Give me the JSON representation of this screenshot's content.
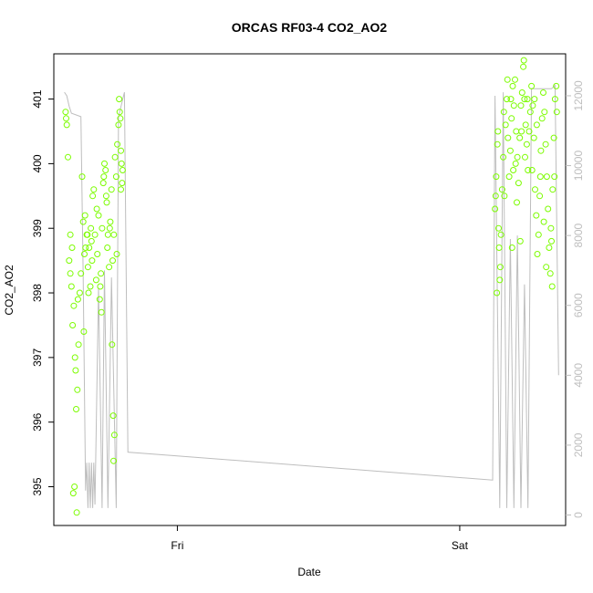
{
  "chart_data": {
    "type": "scatter",
    "title": "ORCAS RF03-4 CO2_AO2",
    "xlabel": "Date",
    "ylabel": "CO2_AO2",
    "x_ticks": [
      {
        "label": "Fri",
        "hours": 24
      },
      {
        "label": "Sat",
        "hours": 48
      }
    ],
    "xlim_hours": [
      13.5,
      57
    ],
    "ylim": [
      394.4,
      401.7
    ],
    "y_ticks": [
      395,
      396,
      397,
      398,
      399,
      400,
      401
    ],
    "y2lim": [
      -300,
      13200
    ],
    "y2_ticks": [
      0,
      2000,
      4000,
      6000,
      8000,
      10000,
      12000
    ],
    "colors": {
      "points": "#7cfc00",
      "line": "#bebebe",
      "axis": "#000000",
      "axis2": "#bebebe"
    },
    "points": [
      [
        14.5,
        400.8
      ],
      [
        14.55,
        400.7
      ],
      [
        14.6,
        400.6
      ],
      [
        14.7,
        400.1
      ],
      [
        14.8,
        398.5
      ],
      [
        14.9,
        398.3
      ],
      [
        15.0,
        398.1
      ],
      [
        15.1,
        397.5
      ],
      [
        15.2,
        397.8
      ],
      [
        15.3,
        397.0
      ],
      [
        15.35,
        396.8
      ],
      [
        15.4,
        396.2
      ],
      [
        15.5,
        396.5
      ],
      [
        15.6,
        397.2
      ],
      [
        15.7,
        398.0
      ],
      [
        15.8,
        398.3
      ],
      [
        15.9,
        399.8
      ],
      [
        16.0,
        399.1
      ],
      [
        16.1,
        398.6
      ],
      [
        16.2,
        398.7
      ],
      [
        16.3,
        398.9
      ],
      [
        16.4,
        398.4
      ],
      [
        16.5,
        398.7
      ],
      [
        16.6,
        398.1
      ],
      [
        16.7,
        398.8
      ],
      [
        16.8,
        399.5
      ],
      [
        16.9,
        399.6
      ],
      [
        17.0,
        398.9
      ],
      [
        17.1,
        398.2
      ],
      [
        17.2,
        398.6
      ],
      [
        17.3,
        399.2
      ],
      [
        17.4,
        397.9
      ],
      [
        17.5,
        398.3
      ],
      [
        17.6,
        399.0
      ],
      [
        17.7,
        399.7
      ],
      [
        17.8,
        400.0
      ],
      [
        17.9,
        399.9
      ],
      [
        18.0,
        399.4
      ],
      [
        18.1,
        398.9
      ],
      [
        18.2,
        398.4
      ],
      [
        18.3,
        399.1
      ],
      [
        18.4,
        399.6
      ],
      [
        18.5,
        398.5
      ],
      [
        18.6,
        398.9
      ],
      [
        18.7,
        400.1
      ],
      [
        18.8,
        399.8
      ],
      [
        18.9,
        400.3
      ],
      [
        19.0,
        400.6
      ],
      [
        19.1,
        400.8
      ],
      [
        19.2,
        400.2
      ],
      [
        19.3,
        399.7
      ],
      [
        19.35,
        399.9
      ],
      [
        15.15,
        394.9
      ],
      [
        15.25,
        395.0
      ],
      [
        15.45,
        394.6
      ],
      [
        16.05,
        397.4
      ],
      [
        16.45,
        398.0
      ],
      [
        17.55,
        397.7
      ],
      [
        18.45,
        397.2
      ],
      [
        18.55,
        396.1
      ],
      [
        18.65,
        395.8
      ],
      [
        18.58,
        395.4
      ],
      [
        19.05,
        401.0
      ],
      [
        19.15,
        400.7
      ],
      [
        14.9,
        398.9
      ],
      [
        15.05,
        398.7
      ],
      [
        16.15,
        399.2
      ],
      [
        16.65,
        399.0
      ],
      [
        17.15,
        399.3
      ],
      [
        17.75,
        399.8
      ],
      [
        18.85,
        398.6
      ],
      [
        19.25,
        400.0
      ],
      [
        17.95,
        399.5
      ],
      [
        18.05,
        398.7
      ],
      [
        15.55,
        397.9
      ],
      [
        16.75,
        398.5
      ],
      [
        17.45,
        398.1
      ],
      [
        16.35,
        398.9
      ],
      [
        18.25,
        399.0
      ],
      [
        19.2,
        399.6
      ],
      [
        51.0,
        399.3
      ],
      [
        51.1,
        399.8
      ],
      [
        51.2,
        400.3
      ],
      [
        51.3,
        399.0
      ],
      [
        51.35,
        398.7
      ],
      [
        51.4,
        398.2
      ],
      [
        51.5,
        398.9
      ],
      [
        51.6,
        399.6
      ],
      [
        51.7,
        400.1
      ],
      [
        51.8,
        399.5
      ],
      [
        51.9,
        400.6
      ],
      [
        52.0,
        401.0
      ],
      [
        52.1,
        400.4
      ],
      [
        52.2,
        399.8
      ],
      [
        52.3,
        400.2
      ],
      [
        52.4,
        400.7
      ],
      [
        52.5,
        401.2
      ],
      [
        52.6,
        400.9
      ],
      [
        52.7,
        401.3
      ],
      [
        52.8,
        400.5
      ],
      [
        52.9,
        400.1
      ],
      [
        53.0,
        399.7
      ],
      [
        53.1,
        400.4
      ],
      [
        53.2,
        400.9
      ],
      [
        53.3,
        401.1
      ],
      [
        53.4,
        401.5
      ],
      [
        53.5,
        401.0
      ],
      [
        53.6,
        400.6
      ],
      [
        53.7,
        400.3
      ],
      [
        53.8,
        399.9
      ],
      [
        53.9,
        400.5
      ],
      [
        54.0,
        400.8
      ],
      [
        54.1,
        401.2
      ],
      [
        54.2,
        400.9
      ],
      [
        54.3,
        400.4
      ],
      [
        54.4,
        399.6
      ],
      [
        54.5,
        399.2
      ],
      [
        54.6,
        398.6
      ],
      [
        54.7,
        398.9
      ],
      [
        54.8,
        399.5
      ],
      [
        54.9,
        400.2
      ],
      [
        55.0,
        400.7
      ],
      [
        55.1,
        401.1
      ],
      [
        55.2,
        400.8
      ],
      [
        55.3,
        400.3
      ],
      [
        55.4,
        399.8
      ],
      [
        55.5,
        399.3
      ],
      [
        55.6,
        398.7
      ],
      [
        55.7,
        398.3
      ],
      [
        55.8,
        398.8
      ],
      [
        55.9,
        399.6
      ],
      [
        56.0,
        400.4
      ],
      [
        56.1,
        401.0
      ],
      [
        56.2,
        401.2
      ],
      [
        56.25,
        400.8
      ],
      [
        53.45,
        401.6
      ],
      [
        52.05,
        401.3
      ],
      [
        51.15,
        398.0
      ],
      [
        52.55,
        399.9
      ],
      [
        53.15,
        398.8
      ],
      [
        54.15,
        399.9
      ],
      [
        55.35,
        398.4
      ],
      [
        56.05,
        399.8
      ],
      [
        51.45,
        398.4
      ],
      [
        52.75,
        400.0
      ],
      [
        53.75,
        401.0
      ],
      [
        54.85,
        399.8
      ],
      [
        55.75,
        399.0
      ],
      [
        51.25,
        400.5
      ],
      [
        52.35,
        401.0
      ],
      [
        53.55,
        400.1
      ],
      [
        54.55,
        400.6
      ],
      [
        55.15,
        399.1
      ],
      [
        55.85,
        398.1
      ],
      [
        51.05,
        399.5
      ],
      [
        52.85,
        399.4
      ],
      [
        54.35,
        401.0
      ],
      [
        53.25,
        400.5
      ],
      [
        51.75,
        400.8
      ],
      [
        52.45,
        398.7
      ]
    ],
    "line": [
      [
        14.4,
        12100
      ],
      [
        14.6,
        12000
      ],
      [
        14.8,
        11700
      ],
      [
        15.0,
        11500
      ],
      [
        15.8,
        11400
      ],
      [
        16.0,
        6800
      ],
      [
        16.2,
        700
      ],
      [
        16.3,
        1500
      ],
      [
        16.4,
        200
      ],
      [
        16.5,
        1500
      ],
      [
        16.6,
        200
      ],
      [
        16.7,
        1500
      ],
      [
        16.8,
        200
      ],
      [
        16.9,
        1500
      ],
      [
        17.0,
        300
      ],
      [
        17.3,
        6500
      ],
      [
        17.6,
        200
      ],
      [
        17.8,
        7000
      ],
      [
        18.1,
        200
      ],
      [
        18.4,
        6800
      ],
      [
        18.8,
        200
      ],
      [
        19.0,
        11400
      ],
      [
        19.5,
        12100
      ],
      [
        19.8,
        1800
      ],
      [
        50.8,
        1000
      ],
      [
        51.0,
        12000
      ],
      [
        51.4,
        200
      ],
      [
        51.7,
        12100
      ],
      [
        52.0,
        200
      ],
      [
        52.3,
        7900
      ],
      [
        52.6,
        200
      ],
      [
        52.9,
        8000
      ],
      [
        53.2,
        200
      ],
      [
        53.5,
        6600
      ],
      [
        53.8,
        200
      ],
      [
        54.1,
        12200
      ],
      [
        55.8,
        12200
      ],
      [
        56.1,
        12300
      ],
      [
        56.4,
        4000
      ]
    ]
  }
}
